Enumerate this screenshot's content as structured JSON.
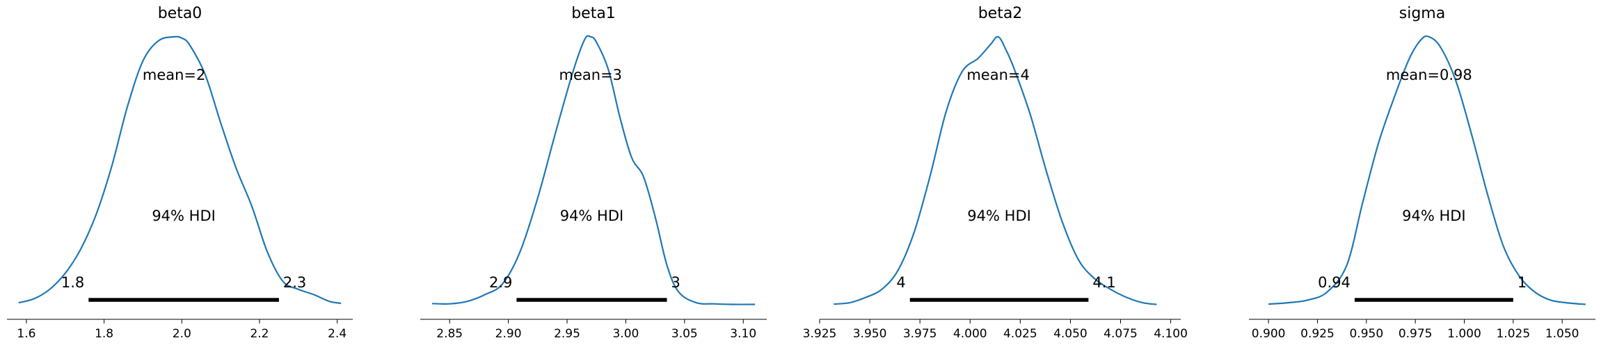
{
  "chart_data": [
    {
      "type": "area",
      "title": "beta0",
      "mean_label": "mean=2",
      "hdi_label": "94% HDI",
      "hdi": [
        1.76,
        2.25
      ],
      "hdi_labels": [
        "1.8",
        "2.3"
      ],
      "xlim": [
        1.55,
        2.44
      ],
      "xticks": [
        1.6,
        1.8,
        2.0,
        2.2,
        2.4
      ],
      "xtick_labels": [
        "1.6",
        "1.8",
        "2.0",
        "2.2",
        "2.4"
      ],
      "x": [
        1.58,
        1.62,
        1.66,
        1.7,
        1.74,
        1.78,
        1.82,
        1.86,
        1.9,
        1.94,
        1.98,
        2.0,
        2.02,
        2.06,
        2.1,
        2.14,
        2.18,
        2.22,
        2.26,
        2.3,
        2.34,
        2.38,
        2.41
      ],
      "density": [
        0.01,
        0.025,
        0.06,
        0.12,
        0.21,
        0.34,
        0.52,
        0.74,
        0.91,
        0.985,
        1.0,
        0.995,
        0.97,
        0.86,
        0.68,
        0.51,
        0.37,
        0.2,
        0.09,
        0.06,
        0.04,
        0.015,
        0.008
      ]
    },
    {
      "type": "area",
      "title": "beta1",
      "mean_label": "mean=3",
      "hdi_label": "94% HDI",
      "hdi": [
        2.907,
        3.035
      ],
      "hdi_labels": [
        "2.9",
        "3"
      ],
      "xlim": [
        2.825,
        3.12
      ],
      "xticks": [
        2.85,
        2.9,
        2.95,
        3.0,
        3.05,
        3.1
      ],
      "xtick_labels": [
        "2.85",
        "2.90",
        "2.95",
        "3.00",
        "3.05",
        "3.10"
      ],
      "x": [
        2.835,
        2.85,
        2.865,
        2.88,
        2.895,
        2.91,
        2.925,
        2.94,
        2.955,
        2.965,
        2.97,
        2.975,
        2.985,
        2.995,
        3.005,
        3.015,
        3.025,
        3.035,
        3.045,
        3.06,
        3.075,
        3.09,
        3.11
      ],
      "density": [
        0.007,
        0.006,
        0.015,
        0.04,
        0.08,
        0.2,
        0.4,
        0.64,
        0.87,
        0.99,
        1.0,
        0.98,
        0.88,
        0.7,
        0.55,
        0.48,
        0.33,
        0.15,
        0.05,
        0.01,
        0.006,
        0.004,
        0.004
      ]
    },
    {
      "type": "area",
      "title": "beta2",
      "mean_label": "mean=4",
      "hdi_label": "94% HDI",
      "hdi": [
        3.97,
        4.059
      ],
      "hdi_labels": [
        "4",
        "4.1"
      ],
      "xlim": [
        3.925,
        4.105
      ],
      "xticks": [
        3.925,
        3.95,
        3.975,
        4.0,
        4.025,
        4.05,
        4.075,
        4.1
      ],
      "xtick_labels": [
        "3.925",
        "3.950",
        "3.975",
        "4.000",
        "4.025",
        "4.050",
        "4.075",
        "4.100"
      ],
      "x": [
        3.932,
        3.94,
        3.948,
        3.956,
        3.964,
        3.972,
        3.98,
        3.988,
        3.996,
        4.004,
        4.01,
        4.014,
        4.018,
        4.022,
        4.03,
        4.038,
        4.046,
        4.054,
        4.062,
        4.07,
        4.078,
        4.086,
        4.093
      ],
      "density": [
        0.005,
        0.01,
        0.03,
        0.06,
        0.13,
        0.27,
        0.48,
        0.72,
        0.87,
        0.92,
        0.97,
        1.0,
        0.95,
        0.88,
        0.71,
        0.5,
        0.31,
        0.17,
        0.1,
        0.06,
        0.03,
        0.01,
        0.004
      ]
    },
    {
      "type": "area",
      "title": "sigma",
      "mean_label": "mean=0.98",
      "hdi_label": "94% HDI",
      "hdi": [
        0.944,
        1.025
      ],
      "hdi_labels": [
        "0.94",
        "1"
      ],
      "xlim": [
        0.89,
        1.067
      ],
      "xticks": [
        0.9,
        0.925,
        0.95,
        0.975,
        1.0,
        1.025,
        1.05
      ],
      "xtick_labels": [
        "0.900",
        "0.925",
        "0.950",
        "0.975",
        "1.000",
        "1.025",
        "1.050"
      ],
      "x": [
        0.9,
        0.91,
        0.92,
        0.93,
        0.94,
        0.948,
        0.956,
        0.964,
        0.972,
        0.978,
        0.982,
        0.988,
        0.996,
        1.004,
        1.012,
        1.02,
        1.028,
        1.036,
        1.044,
        1.052,
        1.062
      ],
      "density": [
        0.005,
        0.01,
        0.02,
        0.05,
        0.15,
        0.38,
        0.6,
        0.77,
        0.92,
        0.99,
        1.0,
        0.96,
        0.83,
        0.63,
        0.41,
        0.22,
        0.11,
        0.05,
        0.02,
        0.01,
        0.004
      ]
    }
  ]
}
